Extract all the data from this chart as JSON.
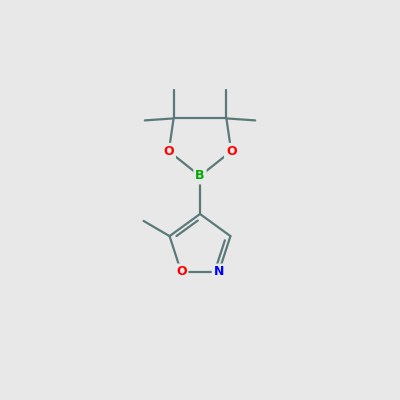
{
  "background_color": "#e8e8e8",
  "bond_color": "#5a7a7a",
  "bond_width": 1.6,
  "O_color": "#ff0000",
  "N_color": "#0000ff",
  "B_color": "#00aa00",
  "figsize": [
    4.0,
    4.0
  ],
  "dpi": 100,
  "xlim": [
    0,
    10
  ],
  "ylim": [
    0,
    10
  ]
}
